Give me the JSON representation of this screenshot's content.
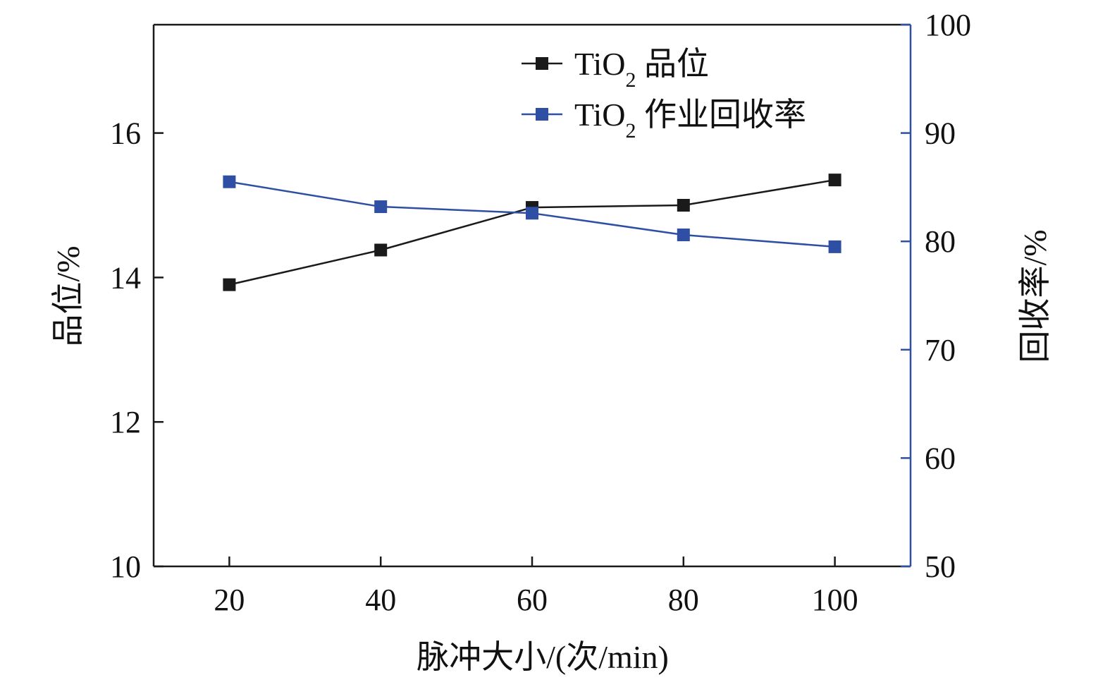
{
  "chart_data": {
    "type": "line",
    "title": "",
    "xlabel": "脉冲大小/(次/min)",
    "ylabel": "品位/%",
    "y2label": "回收率/%",
    "x": [
      20,
      40,
      60,
      80,
      100
    ],
    "xlim": [
      10,
      110
    ],
    "ylim": [
      10,
      17.5
    ],
    "y2lim": [
      50,
      100
    ],
    "x_ticks": [
      "20",
      "40",
      "60",
      "80",
      "100"
    ],
    "y_ticks": [
      "10",
      "12",
      "14",
      "16"
    ],
    "y2_ticks": [
      "50",
      "60",
      "70",
      "80",
      "90",
      "100"
    ],
    "grid": false,
    "legend": "top-center",
    "series": [
      {
        "name": "TiO₂ 品位",
        "name_base": "TiO",
        "name_sub": "2",
        "name_rest": " 品位",
        "axis": "left",
        "color": "#1a1a1a",
        "values": [
          13.9,
          14.38,
          14.97,
          15.0,
          15.35
        ]
      },
      {
        "name": "TiO₂ 作业回收率",
        "name_base": "TiO",
        "name_sub": "2",
        "name_rest": " 作业回收率",
        "axis": "right",
        "color": "#2e4fa3",
        "values": [
          85.5,
          83.2,
          82.6,
          80.6,
          79.5
        ]
      }
    ],
    "axis_color_left": "#1a1a1a",
    "axis_color_right": "#2e4fa3"
  }
}
